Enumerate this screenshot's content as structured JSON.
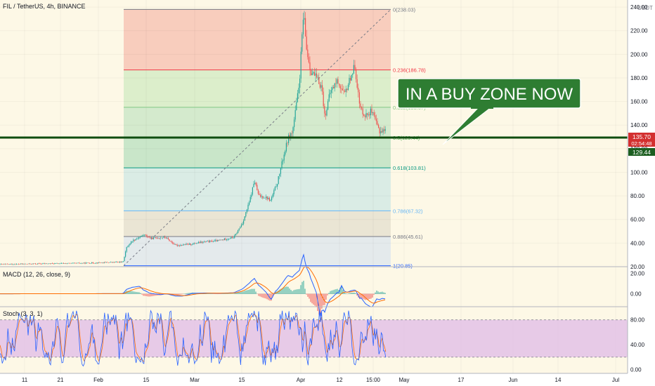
{
  "header": {
    "symbol": "FIL / TetherUS, 4h, BINANCE",
    "currency_top": "USDT"
  },
  "colors": {
    "background": "#fdf8e6",
    "up": "#26a69a",
    "down": "#ef5350",
    "support_line": "#0f4d0f",
    "callout_bg": "#2e7d32",
    "price_badge": "#d32f2f",
    "level_badge": "#1b5e20",
    "macd_line": "#2962ff",
    "signal_line": "#ff6d00",
    "stoch_k": "#2962ff",
    "stoch_d": "#ff6d00",
    "stoch_band": "#e1bee7"
  },
  "price_badge": {
    "price": "135.70",
    "countdown": "02:54:48"
  },
  "level_badge": {
    "value": "129.44"
  },
  "callout": {
    "text": "IN A BUY ZONE NOW"
  },
  "macd_label": "MACD (12, 26, close, 9)",
  "stoch_label": "Stoch (3, 3, 1)",
  "chart_data": {
    "type": "candlestick",
    "main": {
      "y_ticks": [
        20,
        40,
        60,
        80,
        100,
        120,
        140,
        160,
        180,
        200,
        220,
        240
      ],
      "y_tick_labels": [
        "20.00",
        "40.00",
        "60.00",
        "80.00",
        "100.00",
        "120.00",
        "140.00",
        "160.00",
        "180.00",
        "200.00",
        "220.00",
        "240.00"
      ],
      "ylim": [
        20,
        246
      ],
      "price_path": [
        {
          "t": 0,
          "p": 22
        },
        {
          "t": 60,
          "p": 22.5
        },
        {
          "t": 120,
          "p": 23
        },
        {
          "t": 175,
          "p": 24
        },
        {
          "t": 180,
          "p": 36
        },
        {
          "t": 188,
          "p": 42
        },
        {
          "t": 205,
          "p": 47
        },
        {
          "t": 215,
          "p": 44
        },
        {
          "t": 235,
          "p": 45
        },
        {
          "t": 250,
          "p": 38
        },
        {
          "t": 270,
          "p": 39
        },
        {
          "t": 290,
          "p": 41
        },
        {
          "t": 310,
          "p": 42
        },
        {
          "t": 333,
          "p": 45
        },
        {
          "t": 345,
          "p": 57
        },
        {
          "t": 355,
          "p": 75
        },
        {
          "t": 362,
          "p": 93
        },
        {
          "t": 368,
          "p": 80
        },
        {
          "t": 378,
          "p": 79
        },
        {
          "t": 385,
          "p": 76
        },
        {
          "t": 395,
          "p": 92
        },
        {
          "t": 402,
          "p": 110
        },
        {
          "t": 410,
          "p": 129
        },
        {
          "t": 416,
          "p": 134
        },
        {
          "t": 420,
          "p": 150
        },
        {
          "t": 426,
          "p": 176
        },
        {
          "t": 430,
          "p": 218
        },
        {
          "t": 432,
          "p": 234
        },
        {
          "t": 436,
          "p": 205
        },
        {
          "t": 442,
          "p": 186
        },
        {
          "t": 450,
          "p": 180
        },
        {
          "t": 458,
          "p": 172
        },
        {
          "t": 462,
          "p": 147
        },
        {
          "t": 470,
          "p": 168
        },
        {
          "t": 480,
          "p": 178
        },
        {
          "t": 490,
          "p": 165
        },
        {
          "t": 500,
          "p": 183
        },
        {
          "t": 505,
          "p": 190
        },
        {
          "t": 512,
          "p": 155
        },
        {
          "t": 520,
          "p": 148
        },
        {
          "t": 528,
          "p": 152
        },
        {
          "t": 535,
          "p": 142
        },
        {
          "t": 540,
          "p": 135
        },
        {
          "t": 549,
          "p": 135.7
        }
      ],
      "fib_levels": [
        {
          "ratio": "0",
          "value": 238.03,
          "label": "0(238.03)"
        },
        {
          "ratio": "0.236",
          "value": 186.78,
          "label": "0.236(186.78)"
        },
        {
          "ratio": "0.382",
          "value": 155.07,
          "label": "0.382(155.07)"
        },
        {
          "ratio": "0.5",
          "value": 129.44,
          "label": "0.5(129.44)"
        },
        {
          "ratio": "0.618",
          "value": 103.81,
          "label": "0.618(103.81)"
        },
        {
          "ratio": "0.786",
          "value": 67.32,
          "label": "0.786(67.32)"
        },
        {
          "ratio": "0.886",
          "value": 45.61,
          "label": "0.886(45.61)"
        },
        {
          "ratio": "1",
          "value": 20.85,
          "label": "1(20.85)"
        }
      ],
      "fib_zone_colors": [
        "#f7c6b5",
        "#d6ecc6",
        "#cde8c8",
        "#bfe3c3",
        "#d4eae4",
        "#e6e2d0",
        "#dfe7ec"
      ],
      "fib_line_colors": [
        "#787b86",
        "#f23645",
        "#81c784",
        "#4caf50",
        "#089981",
        "#64b5f6",
        "#787b86",
        "#2962ff"
      ],
      "support_level": 129.44
    },
    "macd": {
      "y_ticks": [
        0,
        20
      ],
      "y_tick_labels": [
        "0.00",
        "20.00"
      ],
      "ylim": [
        -12,
        26
      ]
    },
    "stoch": {
      "y_ticks": [
        0,
        40,
        80
      ],
      "y_tick_labels": [
        "0.00",
        "40.00",
        "80.00"
      ],
      "ylim": [
        -5,
        100
      ],
      "band": [
        20,
        80
      ]
    },
    "x_ticks": [
      {
        "label": "11",
        "t": 35
      },
      {
        "label": "21",
        "t": 86
      },
      {
        "label": "Feb",
        "t": 140
      },
      {
        "label": "15",
        "t": 208
      },
      {
        "label": "Mar",
        "t": 277
      },
      {
        "label": "15",
        "t": 344
      },
      {
        "label": "Apr",
        "t": 428
      },
      {
        "label": "12",
        "t": 483
      },
      {
        "label": "15:00",
        "t": 531
      },
      {
        "label": "May",
        "t": 575
      },
      {
        "label": "17",
        "t": 656
      },
      {
        "label": "Jun",
        "t": 730
      },
      {
        "label": "14",
        "t": 794
      },
      {
        "label": "Jul",
        "t": 876
      }
    ]
  }
}
